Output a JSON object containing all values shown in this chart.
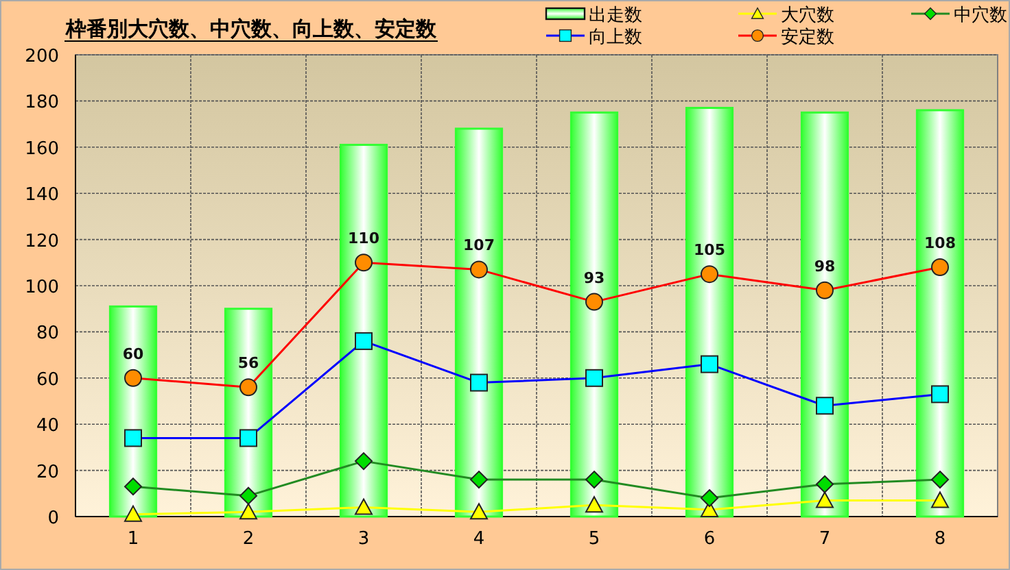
{
  "chart_data": {
    "type": "bar",
    "title": "枠番別大穴数、中穴数、向上数、安定数",
    "categories": [
      "1",
      "2",
      "3",
      "4",
      "5",
      "6",
      "7",
      "8"
    ],
    "series": [
      {
        "name": "出走数",
        "color": "#33ff33",
        "values": [
          91,
          90,
          161,
          168,
          175,
          177,
          175,
          176
        ]
      },
      {
        "name": "大穴数",
        "type": "line",
        "marker": "triangle",
        "color": "#ffff00",
        "values": [
          1,
          2,
          4,
          2,
          5,
          3,
          7,
          7
        ]
      },
      {
        "name": "中穴数",
        "type": "line",
        "marker": "diamond",
        "color": "#228b22",
        "values": [
          13,
          9,
          24,
          16,
          16,
          8,
          14,
          16
        ]
      },
      {
        "name": "向上数",
        "type": "line",
        "marker": "square",
        "color": "#0000ff",
        "values": [
          34,
          34,
          76,
          58,
          60,
          66,
          48,
          53
        ]
      },
      {
        "name": "安定数",
        "type": "line",
        "marker": "circle",
        "color": "#ff0000",
        "values": [
          60,
          56,
          110,
          107,
          93,
          105,
          98,
          108
        ],
        "value_labels": [
          "60",
          "56",
          "110",
          "107",
          "93",
          "105",
          "98",
          "108"
        ]
      }
    ],
    "ylim": [
      0,
      200
    ],
    "yticks": [
      0,
      20,
      40,
      60,
      80,
      100,
      120,
      140,
      160,
      180,
      200
    ],
    "grid": true,
    "legend": "top right"
  }
}
